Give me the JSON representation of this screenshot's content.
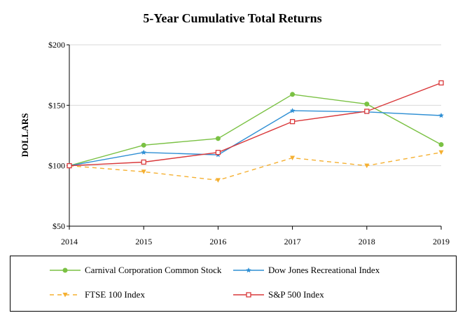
{
  "chart_data": {
    "type": "line",
    "title": "5-Year Cumulative Total Returns",
    "ylabel": "DOLLARS",
    "xlabel": "",
    "categories": [
      "2014",
      "2015",
      "2016",
      "2017",
      "2018",
      "2019"
    ],
    "ylim": [
      50,
      200
    ],
    "yticks": [
      50,
      100,
      150,
      200
    ],
    "ytick_labels": [
      "$50",
      "$100",
      "$150",
      "$200"
    ],
    "grid": "horizontal",
    "legend_position": "bottom",
    "series": [
      {
        "name": "Carnival Corporation Common Stock",
        "color": "#7ac143",
        "marker": "circle",
        "dash": "solid",
        "values": [
          100,
          117,
          122.5,
          159,
          151,
          117.5
        ]
      },
      {
        "name": "Dow Jones Recreational Index",
        "color": "#2f8fd4",
        "marker": "star",
        "dash": "solid",
        "values": [
          100,
          111,
          109,
          145.5,
          144.5,
          141.5
        ]
      },
      {
        "name": "FTSE 100 Index",
        "color": "#f5b031",
        "marker": "triangle-down",
        "dash": "dashed",
        "values": [
          100,
          95,
          88,
          106.5,
          100,
          111
        ]
      },
      {
        "name": "S&P 500 Index",
        "color": "#d9383a",
        "marker": "square",
        "dash": "solid",
        "values": [
          100,
          103,
          111,
          136.5,
          145,
          168.5
        ]
      }
    ]
  }
}
